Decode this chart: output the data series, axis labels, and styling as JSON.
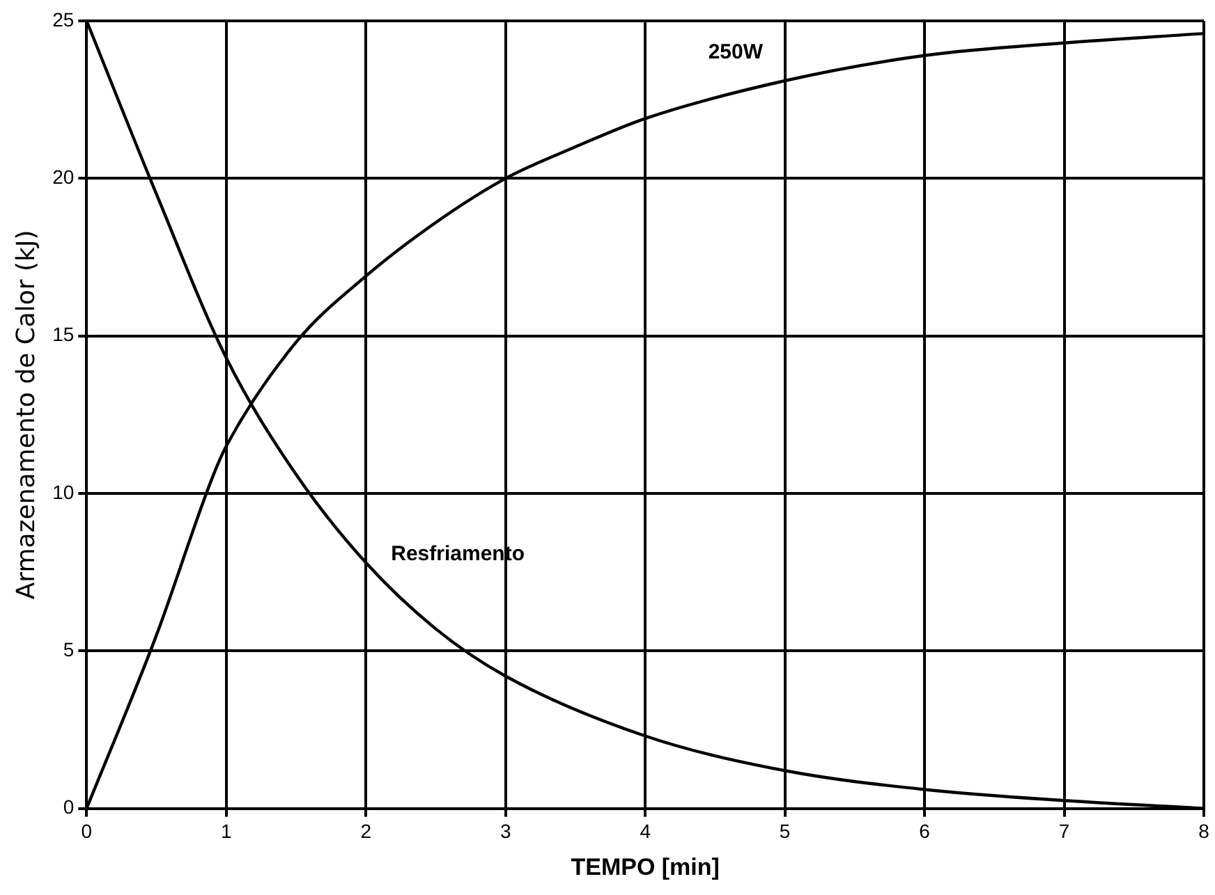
{
  "chart_data": {
    "type": "line",
    "xlabel": "TEMPO [min]",
    "ylabel": "Armazenamento de Calor (kJ)",
    "xlim": [
      0,
      8
    ],
    "ylim": [
      0,
      25
    ],
    "xticks": [
      0,
      1,
      2,
      3,
      4,
      5,
      6,
      7,
      8
    ],
    "yticks": [
      0,
      5,
      10,
      15,
      20,
      25
    ],
    "grid": true,
    "legend": false,
    "marker": "none",
    "line_style": "solid",
    "series": [
      {
        "name": "250W",
        "color": "#000000",
        "x": [
          0,
          0.5,
          0.9,
          1,
          1.5,
          2,
          2.5,
          3,
          3.5,
          4,
          5,
          6,
          7,
          8
        ],
        "values": [
          0,
          5.5,
          10.5,
          11.5,
          14.8,
          16.9,
          18.6,
          20,
          21,
          21.9,
          23.1,
          23.9,
          24.3,
          24.6
        ]
      },
      {
        "name": "Resfriamento",
        "color": "#000000",
        "x": [
          0,
          0.5,
          1,
          1.5,
          2,
          2.5,
          3,
          4,
          5,
          6,
          7,
          8
        ],
        "values": [
          25,
          19.5,
          14.3,
          10.6,
          7.8,
          5.7,
          4.2,
          2.3,
          1.2,
          0.6,
          0.25,
          0
        ]
      }
    ]
  }
}
